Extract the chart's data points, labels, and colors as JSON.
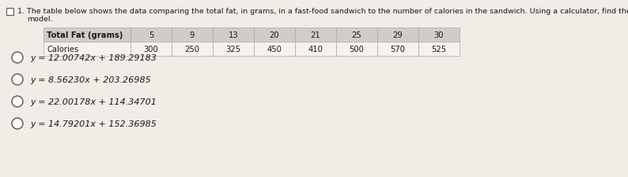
{
  "question_number": "1.",
  "question_line1": "The table below shows the data comparing the total fat, in grams, in a fast-food sandwich to the number of calories in the sandwich. Using a calculator, find the equation of t",
  "question_line2": "model.",
  "table_header": [
    "Total Fat (grams)",
    "5",
    "9",
    "13",
    "20",
    "21",
    "25",
    "29",
    "30"
  ],
  "table_row2": [
    "Calories",
    "300",
    "250",
    "325",
    "450",
    "410",
    "500",
    "570",
    "525"
  ],
  "options": [
    "y = 12.00742x + 189.29183",
    "y = 8.56230x + 203.26985",
    "y = 22.00178x + 114.34701",
    "y = 14.79201x + 152.36985"
  ],
  "header_bg": "#d0ccca",
  "row2_bg": "#f5f2ee",
  "table_border": "#aaaaaa",
  "text_color": "#1a1a1a",
  "bg_color": "#f0ece6",
  "checkbox_color": "#555555",
  "font_size_question": 6.8,
  "font_size_table": 7.2,
  "font_size_options": 8.0
}
